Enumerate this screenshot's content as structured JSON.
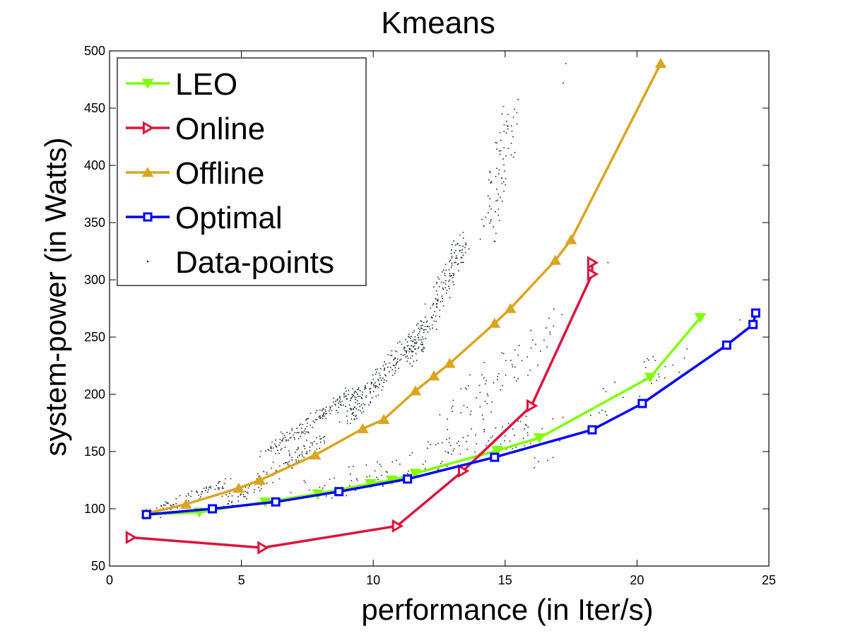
{
  "chart_data": {
    "type": "line",
    "title": "Kmeans",
    "xlabel": "performance (in Iter/s)",
    "ylabel": "system-power (in Watts)",
    "xlim": [
      0,
      25
    ],
    "ylim": [
      50,
      500
    ],
    "xticks": [
      0,
      5,
      10,
      15,
      20,
      25
    ],
    "yticks": [
      50,
      100,
      150,
      200,
      250,
      300,
      350,
      400,
      450,
      500
    ],
    "grid": false,
    "legend_position": "top-left",
    "series": [
      {
        "name": "LEO",
        "color": "#7FFF00",
        "marker": "triangle-down",
        "points": [
          [
            1.4,
            95
          ],
          [
            3.4,
            97
          ],
          [
            5.9,
            106
          ],
          [
            7.9,
            113
          ],
          [
            9.9,
            122
          ],
          [
            10.7,
            125
          ],
          [
            11.6,
            131
          ],
          [
            14.7,
            151
          ],
          [
            16.3,
            162
          ],
          [
            20.5,
            215
          ],
          [
            22.4,
            267
          ]
        ]
      },
      {
        "name": "Online",
        "color": "#DC143C",
        "marker": "triangle-right",
        "points": [
          [
            0.8,
            75
          ],
          [
            5.8,
            66
          ],
          [
            10.9,
            85
          ],
          [
            13.4,
            133
          ],
          [
            16.0,
            190
          ],
          [
            18.3,
            305
          ],
          [
            18.3,
            315
          ]
        ]
      },
      {
        "name": "Offline",
        "color": "#DAA520",
        "marker": "triangle-up",
        "points": [
          [
            1.4,
            96
          ],
          [
            2.9,
            104
          ],
          [
            4.9,
            118
          ],
          [
            5.7,
            125
          ],
          [
            7.8,
            147
          ],
          [
            9.6,
            170
          ],
          [
            10.4,
            178
          ],
          [
            11.6,
            203
          ],
          [
            12.3,
            216
          ],
          [
            12.9,
            227
          ],
          [
            14.6,
            262
          ],
          [
            15.2,
            275
          ],
          [
            16.9,
            317
          ],
          [
            17.5,
            335
          ],
          [
            20.9,
            489
          ]
        ]
      },
      {
        "name": "Optimal",
        "color": "#0000FF",
        "marker": "square",
        "points": [
          [
            1.4,
            95
          ],
          [
            3.9,
            100
          ],
          [
            6.3,
            106
          ],
          [
            8.7,
            115
          ],
          [
            11.3,
            126
          ],
          [
            14.6,
            145
          ],
          [
            18.3,
            169
          ],
          [
            20.2,
            192
          ],
          [
            23.4,
            243
          ],
          [
            24.4,
            261
          ],
          [
            24.5,
            271
          ]
        ]
      },
      {
        "name": "Data-points",
        "color": "#000000",
        "marker": "dot"
      }
    ],
    "scatter_clusters": [
      {
        "x": [
          1.4,
          4.5
        ],
        "y": [
          93,
          125
        ],
        "n": 70,
        "spread": 8
      },
      {
        "x": [
          4.5,
          8.0
        ],
        "y": [
          105,
          160
        ],
        "n": 120,
        "spread": 12
      },
      {
        "x": [
          6.0,
          9.5
        ],
        "y": [
          150,
          205
        ],
        "n": 160,
        "spread": 10
      },
      {
        "x": [
          9.0,
          12.0
        ],
        "y": [
          180,
          260
        ],
        "n": 200,
        "spread": 14
      },
      {
        "x": [
          11.5,
          13.5
        ],
        "y": [
          230,
          340
        ],
        "n": 160,
        "spread": 18
      },
      {
        "x": [
          14.3,
          15.3
        ],
        "y": [
          340,
          450
        ],
        "n": 80,
        "spread": 30
      },
      {
        "x": [
          7.0,
          16.0
        ],
        "y": [
          110,
          170
        ],
        "n": 120,
        "spread": 25
      },
      {
        "x": [
          12.0,
          17.0
        ],
        "y": [
          160,
          260
        ],
        "n": 80,
        "spread": 40
      },
      {
        "x": [
          16.0,
          22.0
        ],
        "y": [
          150,
          240
        ],
        "n": 40,
        "spread": 30
      }
    ],
    "scatter_outliers": [
      [
        17.3,
        489
      ],
      [
        17.2,
        472
      ],
      [
        18.9,
        315
      ],
      [
        23.9,
        265
      ]
    ]
  }
}
